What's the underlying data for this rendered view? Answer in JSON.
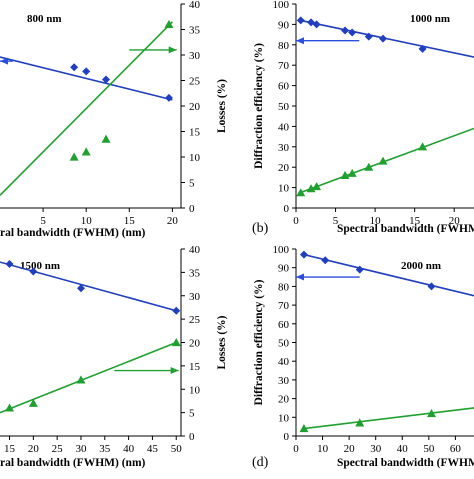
{
  "colors": {
    "efficiency_series": "#1f3fbf",
    "losses_series": "#1fa02f",
    "efficiency_arrow": "#2a4fe0",
    "losses_arrow": "#1fa02f"
  },
  "chart_data": [
    {
      "type": "scatter",
      "panel_label": "",
      "annotation": "800 nm",
      "xlabel": "ral bandwidth (FWHM) (nm)",
      "ylabel_left": "",
      "ylabel_right": "Losses (%)",
      "x_ticks": [
        "5",
        "10",
        "15",
        "20"
      ],
      "xlim": [
        0,
        21
      ],
      "ylim_left": [
        0,
        100
      ],
      "ylim_right": [
        0,
        40
      ],
      "y_ticks_right": [
        "0",
        "5",
        "10",
        "15",
        "20",
        "25",
        "30",
        "35",
        "40"
      ],
      "grid": false,
      "series": [
        {
          "axis": "left",
          "marker": "diamond",
          "x": [
            8.6,
            10,
            12.3,
            19.6
          ],
          "y": [
            69,
            67,
            63,
            54
          ],
          "fit": [
            [
              0,
              74
            ],
            [
              20,
              53
            ]
          ]
        },
        {
          "axis": "right",
          "marker": "triangle",
          "x": [
            8.6,
            10,
            12.3,
            19.6
          ],
          "y": [
            10,
            11,
            13.5,
            36
          ],
          "fit": [
            [
              0,
              2.5
            ],
            [
              20,
              36.5
            ]
          ]
        }
      ],
      "arrows": [
        {
          "series": "efficiency",
          "direction": "left",
          "x": [
            0,
            1.5
          ],
          "y": 72
        },
        {
          "series": "losses",
          "direction": "right",
          "x": [
            15,
            20.5
          ],
          "y": 31
        }
      ]
    },
    {
      "type": "scatter",
      "panel_label": "(b)",
      "annotation": "1000 nm",
      "xlabel": "Spectral bandwidth (FWHM",
      "ylabel_left": "Diffraction efficiency (%)",
      "ylabel_right": "",
      "x_ticks": [
        "0",
        "5",
        "10",
        "15",
        "20"
      ],
      "y_ticks_left": [
        "0",
        "10",
        "20",
        "30",
        "40",
        "50",
        "60",
        "70",
        "80",
        "90",
        "100"
      ],
      "xlim": [
        0,
        22.5
      ],
      "ylim_left": [
        0,
        100
      ],
      "grid": false,
      "series": [
        {
          "axis": "left",
          "marker": "diamond",
          "x": [
            0.6,
            1.9,
            2.6,
            6.2,
            7.1,
            9.2,
            11,
            16
          ],
          "y": [
            92,
            91,
            90,
            87,
            86,
            84,
            83,
            78
          ],
          "fit": [
            [
              0.5,
              92
            ],
            [
              22.5,
              74
            ]
          ]
        },
        {
          "axis": "left",
          "marker": "triangle",
          "x": [
            0.6,
            1.9,
            2.6,
            6.2,
            7.1,
            9.2,
            11,
            16
          ],
          "y": [
            7.5,
            9.5,
            10.5,
            16,
            17,
            20,
            23,
            30
          ],
          "fit": [
            [
              0.5,
              7.5
            ],
            [
              22.5,
              39
            ]
          ]
        }
      ],
      "arrows": [
        {
          "series": "efficiency",
          "direction": "left",
          "x": [
            0,
            8
          ],
          "y": 82
        }
      ]
    },
    {
      "type": "scatter",
      "panel_label": "",
      "annotation": "1500 nm",
      "xlabel": "ral bandwidth (FWHM) (nm)",
      "ylabel_left": "",
      "ylabel_right": "Losses (%)",
      "x_ticks": [
        "15",
        "20",
        "25",
        "30",
        "35",
        "40",
        "45",
        "50"
      ],
      "xlim": [
        13,
        51
      ],
      "ylim_left": [
        0,
        100
      ],
      "ylim_right": [
        0,
        40
      ],
      "y_ticks_right": [
        "0",
        "5",
        "10",
        "15",
        "20",
        "25",
        "30",
        "35",
        "40"
      ],
      "grid": false,
      "series": [
        {
          "axis": "left",
          "marker": "diamond",
          "x": [
            15,
            20,
            30,
            50
          ],
          "y": [
            92,
            88,
            79,
            67
          ],
          "fit": [
            [
              13,
              93
            ],
            [
              50,
              67
            ]
          ]
        },
        {
          "axis": "right",
          "marker": "triangle",
          "x": [
            15,
            20,
            30,
            50
          ],
          "y": [
            6,
            7,
            12,
            20
          ],
          "fit": [
            [
              13,
              5
            ],
            [
              50,
              20
            ]
          ]
        }
      ],
      "arrows": [
        {
          "series": "losses",
          "direction": "right",
          "x": [
            37,
            50.5
          ],
          "y": 14
        }
      ]
    },
    {
      "type": "scatter",
      "panel_label": "(d)",
      "annotation": "2000 nm",
      "xlabel": "Spectral bandwidth (FWHM",
      "ylabel_left": "Diffraction efficiency (%)",
      "ylabel_right": "",
      "x_ticks": [
        "0",
        "10",
        "20",
        "30",
        "40",
        "50",
        "60"
      ],
      "y_ticks_left": [
        "0",
        "10",
        "20",
        "30",
        "40",
        "50",
        "60",
        "70",
        "80",
        "90",
        "100"
      ],
      "xlim": [
        0,
        67
      ],
      "ylim_left": [
        0,
        100
      ],
      "grid": false,
      "series": [
        {
          "axis": "left",
          "marker": "diamond",
          "x": [
            3,
            11,
            24,
            51
          ],
          "y": [
            97,
            94,
            89,
            80
          ],
          "fit": [
            [
              3,
              97
            ],
            [
              67,
              75
            ]
          ]
        },
        {
          "axis": "left",
          "marker": "triangle",
          "x": [
            3,
            24,
            51
          ],
          "y": [
            4,
            7,
            12
          ],
          "fit": [
            [
              3,
              4
            ],
            [
              67,
              15
            ]
          ]
        }
      ],
      "arrows": [
        {
          "series": "efficiency",
          "direction": "left",
          "x": [
            0,
            24
          ],
          "y": 85
        }
      ]
    }
  ]
}
